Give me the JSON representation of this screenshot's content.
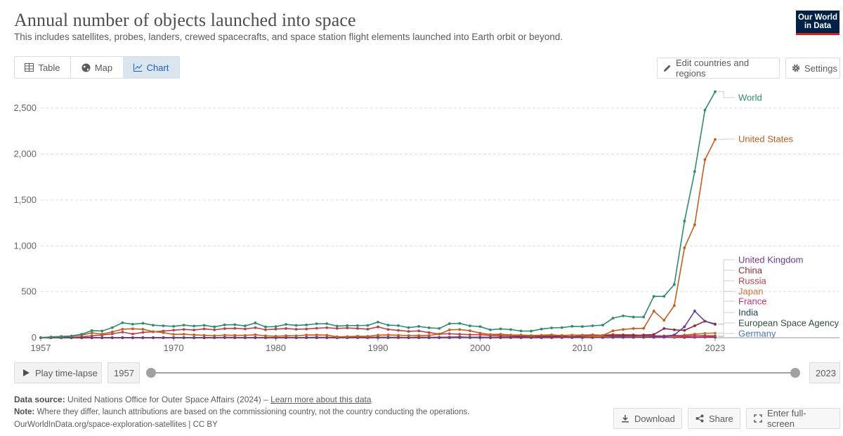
{
  "header": {
    "title": "Annual number of objects launched into space",
    "subtitle": "This includes satellites, probes, landers, crewed spacecrafts, and space station flight elements launched into Earth orbit or beyond.",
    "logo_line1": "Our World",
    "logo_line2": "in Data"
  },
  "tabs": [
    {
      "label": "Table",
      "icon": "table-icon"
    },
    {
      "label": "Map",
      "icon": "globe-icon"
    },
    {
      "label": "Chart",
      "icon": "line-chart-icon",
      "active": true
    }
  ],
  "toolbar": {
    "edit_label": "Edit countries and regions",
    "settings_label": "Settings"
  },
  "timeline": {
    "play_label": "Play time-lapse",
    "start_year": "1957",
    "end_year": "2023"
  },
  "footer": {
    "source_label": "Data source:",
    "source_text": "United Nations Office for Outer Space Affairs (2024) – ",
    "source_link": "Learn more about this data",
    "note_label": "Note:",
    "note_text": "Where they differ, launch attributions are based on the commissioning country, not the country conducting the operations.",
    "credit": "OurWorldInData.org/space-exploration-satellites | CC BY",
    "download_label": "Download",
    "share_label": "Share",
    "fullscreen_label": "Enter full-screen"
  },
  "colors": {
    "World": "#2e8b6e",
    "United States": "#c15f1f",
    "United Kingdom": "#6a3d8f",
    "China": "#8a2b3a",
    "Russia": "#b8424a",
    "Japan": "#d1713b",
    "France": "#c22f7a",
    "India": "#1b3f55",
    "European Space Agency": "#2f4f3a",
    "Germany": "#4a78b5"
  },
  "chart_data": {
    "type": "line",
    "title": "Annual number of objects launched into space",
    "xlabel": "",
    "ylabel": "",
    "xlim": [
      1957,
      2023
    ],
    "ylim": [
      0,
      2700
    ],
    "y_ticks": [
      0,
      500,
      1000,
      1500,
      2000,
      2500
    ],
    "y_tick_labels": [
      "0",
      "500",
      "1,000",
      "1,500",
      "2,000",
      "2,500"
    ],
    "x_ticks": [
      1957,
      1970,
      1980,
      1990,
      2000,
      2010,
      2023
    ],
    "x_tick_labels": [
      "1957",
      "1970",
      "1980",
      "1990",
      "2000",
      "2010",
      "2023"
    ],
    "grid": "horizontal-dashed",
    "legend": "right-end-labels",
    "x": [
      1957,
      1958,
      1959,
      1960,
      1961,
      1962,
      1963,
      1964,
      1965,
      1966,
      1967,
      1968,
      1969,
      1970,
      1971,
      1972,
      1973,
      1974,
      1975,
      1976,
      1977,
      1978,
      1979,
      1980,
      1981,
      1982,
      1983,
      1984,
      1985,
      1986,
      1987,
      1988,
      1989,
      1990,
      1991,
      1992,
      1993,
      1994,
      1995,
      1996,
      1997,
      1998,
      1999,
      2000,
      2001,
      2002,
      2003,
      2004,
      2005,
      2006,
      2007,
      2008,
      2009,
      2010,
      2011,
      2012,
      2013,
      2014,
      2015,
      2016,
      2017,
      2018,
      2019,
      2020,
      2021,
      2022,
      2023
    ],
    "series": [
      {
        "name": "World",
        "values": [
          2,
          8,
          14,
          19,
          38,
          77,
          73,
          110,
          163,
          147,
          157,
          136,
          130,
          124,
          137,
          127,
          135,
          118,
          140,
          142,
          129,
          161,
          118,
          121,
          145,
          134,
          139,
          152,
          153,
          127,
          132,
          132,
          134,
          170,
          137,
          132,
          110,
          123,
          108,
          101,
          153,
          156,
          129,
          121,
          86,
          96,
          89,
          73,
          72,
          94,
          107,
          110,
          124,
          122,
          130,
          137,
          213,
          238,
          225,
          225,
          450,
          450,
          580,
          1270,
          1810,
          2480,
          2680
        ]
      },
      {
        "name": "United States",
        "values": [
          0,
          7,
          9,
          17,
          29,
          52,
          40,
          63,
          93,
          97,
          92,
          67,
          55,
          36,
          38,
          31,
          26,
          22,
          28,
          26,
          25,
          32,
          21,
          16,
          22,
          21,
          29,
          30,
          28,
          10,
          12,
          16,
          15,
          28,
          30,
          27,
          23,
          24,
          25,
          40,
          85,
          89,
          76,
          50,
          35,
          38,
          29,
          29,
          24,
          27,
          31,
          23,
          28,
          25,
          22,
          25,
          75,
          90,
          100,
          102,
          290,
          190,
          350,
          980,
          1230,
          1940,
          2160
        ]
      },
      {
        "name": "United Kingdom",
        "values": [
          0,
          0,
          0,
          0,
          0,
          1,
          0,
          0,
          0,
          0,
          1,
          0,
          1,
          0,
          1,
          1,
          0,
          1,
          2,
          0,
          0,
          1,
          1,
          0,
          0,
          0,
          0,
          0,
          0,
          0,
          0,
          0,
          0,
          1,
          0,
          0,
          0,
          0,
          0,
          0,
          1,
          3,
          3,
          2,
          1,
          0,
          1,
          1,
          1,
          1,
          1,
          2,
          1,
          1,
          1,
          2,
          5,
          7,
          5,
          4,
          10,
          12,
          30,
          120,
          290,
          180,
          150
        ]
      },
      {
        "name": "China",
        "values": [
          0,
          0,
          0,
          0,
          0,
          0,
          0,
          0,
          0,
          0,
          0,
          0,
          0,
          1,
          1,
          0,
          0,
          1,
          3,
          3,
          1,
          1,
          1,
          0,
          3,
          1,
          2,
          3,
          2,
          2,
          2,
          4,
          2,
          5,
          3,
          4,
          2,
          5,
          3,
          4,
          6,
          8,
          3,
          5,
          3,
          7,
          8,
          10,
          5,
          11,
          12,
          14,
          9,
          18,
          22,
          25,
          20,
          24,
          23,
          29,
          35,
          100,
          86,
          80,
          130,
          180,
          145
        ]
      },
      {
        "name": "Russia",
        "values": [
          2,
          1,
          3,
          3,
          9,
          21,
          29,
          42,
          61,
          41,
          58,
          64,
          72,
          82,
          90,
          84,
          96,
          86,
          99,
          102,
          95,
          109,
          87,
          94,
          100,
          92,
          95,
          103,
          109,
          101,
          106,
          101,
          93,
          118,
          90,
          80,
          69,
          74,
          56,
          40,
          43,
          38,
          33,
          33,
          24,
          24,
          23,
          19,
          19,
          21,
          24,
          25,
          27,
          28,
          31,
          26,
          35,
          32,
          31,
          24,
          22,
          20,
          26,
          19,
          27,
          23,
          20
        ]
      },
      {
        "name": "Japan",
        "values": [
          0,
          0,
          0,
          0,
          0,
          0,
          0,
          0,
          0,
          0,
          0,
          0,
          0,
          1,
          1,
          1,
          0,
          1,
          2,
          1,
          2,
          3,
          2,
          2,
          3,
          1,
          3,
          4,
          3,
          4,
          3,
          3,
          3,
          5,
          3,
          2,
          1,
          4,
          2,
          3,
          4,
          3,
          2,
          1,
          2,
          4,
          3,
          3,
          6,
          5,
          8,
          6,
          6,
          10,
          9,
          16,
          12,
          16,
          13,
          15,
          18,
          16,
          14,
          30,
          40,
          48,
          50
        ]
      },
      {
        "name": "France",
        "values": [
          0,
          0,
          0,
          0,
          0,
          0,
          0,
          0,
          1,
          1,
          1,
          0,
          0,
          1,
          1,
          0,
          0,
          1,
          3,
          0,
          2,
          0,
          0,
          0,
          2,
          0,
          1,
          2,
          3,
          2,
          1,
          2,
          2,
          2,
          1,
          2,
          1,
          3,
          2,
          2,
          1,
          2,
          3,
          3,
          2,
          2,
          2,
          1,
          1,
          1,
          1,
          2,
          2,
          3,
          4,
          5,
          5,
          7,
          7,
          8,
          6,
          7,
          8,
          9,
          9,
          10,
          12
        ]
      },
      {
        "name": "India",
        "values": [
          0,
          0,
          0,
          0,
          0,
          0,
          0,
          0,
          0,
          0,
          0,
          0,
          0,
          0,
          0,
          0,
          0,
          0,
          1,
          0,
          0,
          0,
          1,
          1,
          2,
          1,
          1,
          0,
          0,
          0,
          1,
          1,
          0,
          1,
          1,
          1,
          1,
          1,
          0,
          1,
          1,
          0,
          2,
          0,
          1,
          1,
          1,
          2,
          2,
          1,
          2,
          2,
          2,
          3,
          4,
          5,
          3,
          4,
          5,
          8,
          6,
          8,
          6,
          4,
          5,
          8,
          7
        ]
      },
      {
        "name": "European Space Agency",
        "values": [
          0,
          0,
          0,
          0,
          0,
          0,
          0,
          0,
          0,
          0,
          0,
          0,
          0,
          0,
          0,
          0,
          0,
          0,
          1,
          0,
          1,
          2,
          0,
          0,
          1,
          1,
          2,
          1,
          2,
          1,
          1,
          2,
          1,
          2,
          1,
          1,
          2,
          1,
          1,
          2,
          2,
          2,
          1,
          1,
          1,
          2,
          2,
          2,
          1,
          2,
          2,
          2,
          3,
          3,
          3,
          3,
          4,
          4,
          5,
          5,
          5,
          5,
          4,
          4,
          5,
          6,
          5
        ]
      },
      {
        "name": "Germany",
        "values": [
          0,
          0,
          0,
          0,
          0,
          0,
          0,
          0,
          0,
          0,
          0,
          0,
          1,
          1,
          1,
          0,
          1,
          1,
          2,
          1,
          0,
          1,
          0,
          0,
          0,
          0,
          0,
          1,
          1,
          1,
          0,
          2,
          2,
          4,
          2,
          2,
          1,
          1,
          2,
          1,
          1,
          3,
          2,
          2,
          3,
          3,
          2,
          1,
          2,
          4,
          5,
          6,
          4,
          3,
          4,
          3,
          5,
          5,
          6,
          6,
          4,
          5,
          8,
          6,
          10,
          8,
          8
        ]
      }
    ]
  }
}
